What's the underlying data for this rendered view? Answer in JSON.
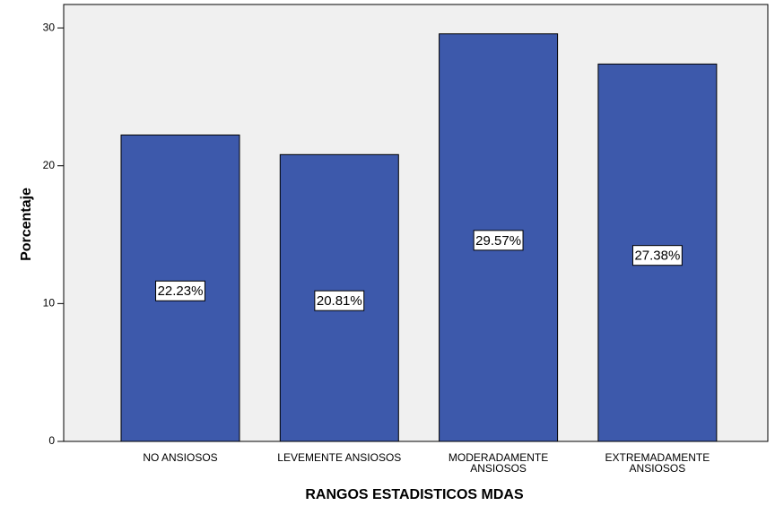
{
  "chart_data": {
    "type": "bar",
    "x_label": "RANGOS ESTADISTICOS MDAS",
    "y_label": "Porcentaje",
    "categories": [
      "NO ANSIOSOS",
      "LEVEMENTE ANSIOSOS",
      "MODERADAMENTE\nANSIOSOS",
      "EXTREMADAMENTE\nANSIOSOS"
    ],
    "values": [
      22.23,
      20.81,
      29.57,
      27.38
    ],
    "value_labels": [
      "22.23%",
      "20.81%",
      "29.57%",
      "27.38%"
    ],
    "color": "#3d59ab",
    "ylim": [
      0,
      31.7
    ],
    "yticks": [
      0,
      10,
      20,
      30
    ],
    "grid": false
  }
}
